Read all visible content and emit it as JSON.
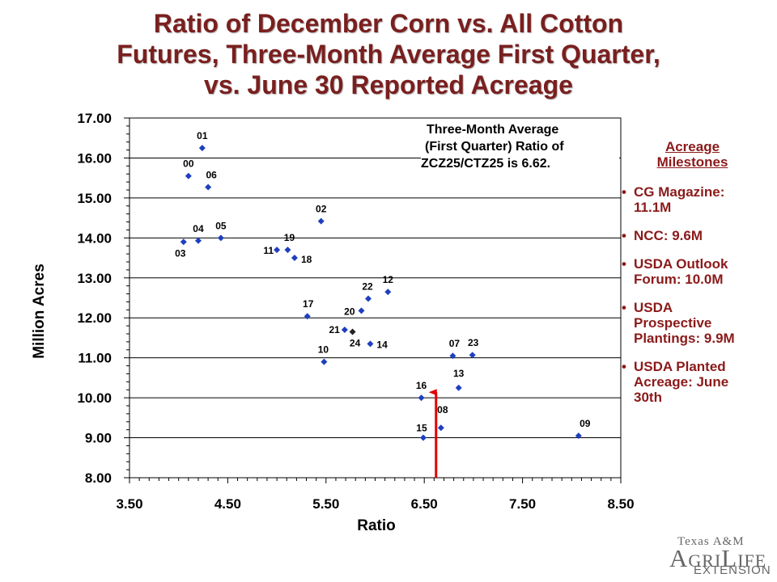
{
  "chart_data": {
    "type": "scatter",
    "title_lines": [
      "Ratio of December Corn vs. All Cotton",
      "Futures, Three-Month Average First Quarter,",
      "vs. June 30 Reported Acreage"
    ],
    "xlabel": "Ratio",
    "ylabel": "Million Acres",
    "xlim": [
      3.5,
      8.5
    ],
    "ylim": [
      8.0,
      17.0
    ],
    "x_ticks": [
      "3.50",
      "4.50",
      "5.50",
      "6.50",
      "7.50",
      "8.50"
    ],
    "y_ticks": [
      "8.00",
      "9.00",
      "10.00",
      "11.00",
      "12.00",
      "13.00",
      "14.00",
      "15.00",
      "16.00",
      "17.00"
    ],
    "grid": "horizontal",
    "marker_color": "#1f3fbf",
    "highlight_color": "#222222",
    "points": [
      {
        "label": "00",
        "x": 4.1,
        "y": 15.55
      },
      {
        "label": "01",
        "x": 4.24,
        "y": 16.25
      },
      {
        "label": "02",
        "x": 5.45,
        "y": 14.42
      },
      {
        "label": "03",
        "x": 4.05,
        "y": 13.9
      },
      {
        "label": "04",
        "x": 4.2,
        "y": 13.93
      },
      {
        "label": "05",
        "x": 4.43,
        "y": 14.0
      },
      {
        "label": "06",
        "x": 4.3,
        "y": 15.27
      },
      {
        "label": "07",
        "x": 6.79,
        "y": 11.05
      },
      {
        "label": "08",
        "x": 6.67,
        "y": 9.25
      },
      {
        "label": "09",
        "x": 8.07,
        "y": 9.05
      },
      {
        "label": "10",
        "x": 5.48,
        "y": 10.9
      },
      {
        "label": "11",
        "x": 5.0,
        "y": 13.7
      },
      {
        "label": "12",
        "x": 6.13,
        "y": 12.65
      },
      {
        "label": "13",
        "x": 6.85,
        "y": 10.25
      },
      {
        "label": "14",
        "x": 5.95,
        "y": 11.35
      },
      {
        "label": "15",
        "x": 6.49,
        "y": 9.0
      },
      {
        "label": "16",
        "x": 6.47,
        "y": 10.0
      },
      {
        "label": "17",
        "x": 5.31,
        "y": 12.04
      },
      {
        "label": "18",
        "x": 5.18,
        "y": 13.5
      },
      {
        "label": "19",
        "x": 5.11,
        "y": 13.7
      },
      {
        "label": "20",
        "x": 5.86,
        "y": 12.18
      },
      {
        "label": "21",
        "x": 5.69,
        "y": 11.7
      },
      {
        "label": "22",
        "x": 5.93,
        "y": 12.48
      },
      {
        "label": "23",
        "x": 6.99,
        "y": 11.07
      },
      {
        "label": "24",
        "x": 5.77,
        "y": 11.65,
        "highlight": true
      }
    ],
    "reference_arrow": {
      "x": 6.62,
      "y_from": 8.0,
      "y_to": 10.3,
      "color": "#e00000"
    },
    "annotation_lines": [
      "Three-Month Average",
      "(First Quarter) Ratio of",
      "ZCZ25/CTZ25 is 6.62."
    ]
  },
  "milestones": {
    "title_lines": [
      "Acreage",
      "Milestones"
    ],
    "items": [
      {
        "lines": [
          "CG Magazine:",
          "11.1M"
        ]
      },
      {
        "lines": [
          "NCC: 9.6M"
        ]
      },
      {
        "lines": [
          "USDA Outlook",
          "Forum: 10.0M"
        ]
      },
      {
        "lines": [
          "USDA",
          "Prospective",
          "Plantings: 9.9M"
        ]
      },
      {
        "lines": [
          "USDA Planted",
          "Acreage: June",
          "30th"
        ]
      }
    ],
    "bullet": "•",
    "color": "#8b1a1a"
  },
  "logo": {
    "line1": "Texas A&M",
    "line2": "AgriLife",
    "line3": "EXTENSION"
  }
}
